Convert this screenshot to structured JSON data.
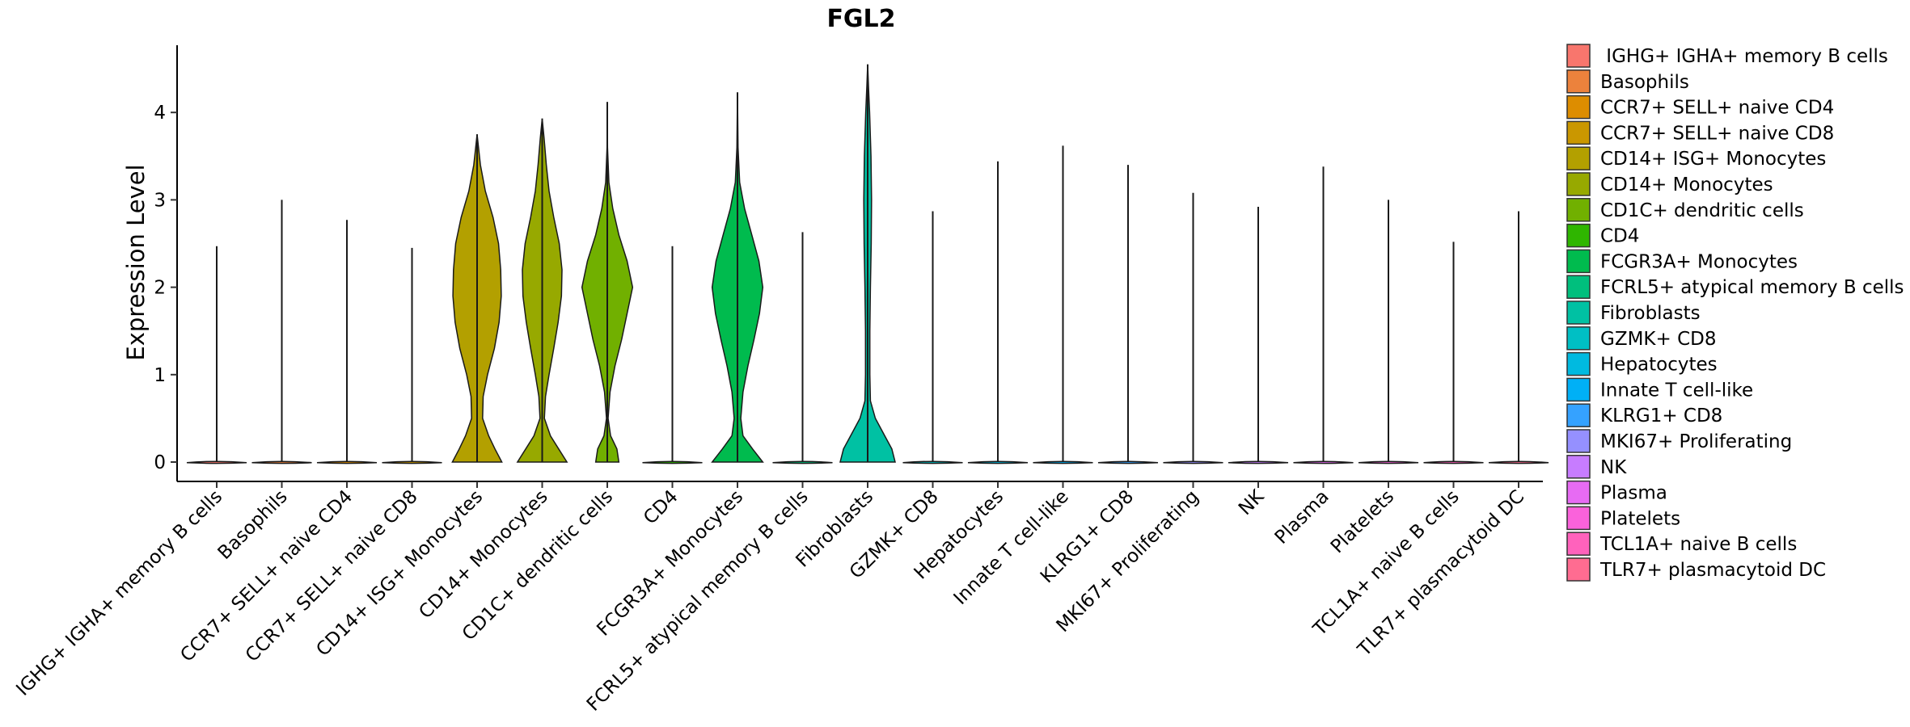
{
  "chart_data": {
    "type": "violin",
    "title": "FGL2",
    "xlabel": "",
    "ylabel": "Expression Level",
    "ylim": [
      -0.22,
      4.8
    ],
    "yticks": [
      0,
      1,
      2,
      3,
      4
    ],
    "legend_position": "right",
    "categories": [
      {
        "name": "IGHG+ IGHA+ memory B cells",
        "legend_label": " IGHG+ IGHA+ memory B cells",
        "color": "#F8766D",
        "max": 2.47,
        "density": []
      },
      {
        "name": "Basophils",
        "legend_label": "Basophils",
        "color": "#EC823C",
        "max": 3.0,
        "density": []
      },
      {
        "name": "CCR7+ SELL+ naive CD4",
        "legend_label": "CCR7+ SELL+ naive CD4",
        "color": "#DD8D00",
        "max": 2.77,
        "density": []
      },
      {
        "name": "CCR7+ SELL+ naive CD8",
        "legend_label": "CCR7+ SELL+ naive CD8",
        "color": "#CA9700",
        "max": 2.45,
        "density": []
      },
      {
        "name": "CD14+ ISG+ Monocytes",
        "legend_label": "CD14+ ISG+ Monocytes",
        "color": "#B3A000",
        "max": 3.75,
        "density": [
          [
            0,
            0.9
          ],
          [
            0.15,
            0.65
          ],
          [
            0.3,
            0.42
          ],
          [
            0.5,
            0.2
          ],
          [
            0.75,
            0.22
          ],
          [
            1.0,
            0.38
          ],
          [
            1.3,
            0.63
          ],
          [
            1.6,
            0.8
          ],
          [
            1.9,
            0.88
          ],
          [
            2.2,
            0.86
          ],
          [
            2.5,
            0.78
          ],
          [
            2.8,
            0.58
          ],
          [
            3.1,
            0.3
          ],
          [
            3.4,
            0.12
          ],
          [
            3.75,
            0.0
          ]
        ]
      },
      {
        "name": "CD14+ Monocytes",
        "legend_label": "CD14+ Monocytes",
        "color": "#97A900",
        "max": 3.93,
        "density": [
          [
            0,
            0.9
          ],
          [
            0.15,
            0.6
          ],
          [
            0.3,
            0.3
          ],
          [
            0.5,
            0.08
          ],
          [
            0.75,
            0.12
          ],
          [
            1.0,
            0.25
          ],
          [
            1.3,
            0.42
          ],
          [
            1.6,
            0.58
          ],
          [
            1.9,
            0.7
          ],
          [
            2.2,
            0.72
          ],
          [
            2.5,
            0.62
          ],
          [
            2.8,
            0.42
          ],
          [
            3.1,
            0.25
          ],
          [
            3.4,
            0.15
          ],
          [
            3.7,
            0.07
          ],
          [
            3.93,
            0.0
          ]
        ]
      },
      {
        "name": "CD1C+ dendritic cells",
        "legend_label": "CD1C+ dendritic cells",
        "color": "#71B000",
        "max": 4.12,
        "density": [
          [
            0,
            0.42
          ],
          [
            0.15,
            0.35
          ],
          [
            0.3,
            0.12
          ],
          [
            0.5,
            0.03
          ],
          [
            0.8,
            0.1
          ],
          [
            1.1,
            0.28
          ],
          [
            1.4,
            0.52
          ],
          [
            1.7,
            0.72
          ],
          [
            2.0,
            0.92
          ],
          [
            2.3,
            0.72
          ],
          [
            2.6,
            0.42
          ],
          [
            2.9,
            0.2
          ],
          [
            3.2,
            0.06
          ],
          [
            3.6,
            0.01
          ],
          [
            4.12,
            0.0
          ]
        ]
      },
      {
        "name": "CD4",
        "legend_label": "CD4",
        "color": "#2FB600",
        "max": 2.47,
        "density": []
      },
      {
        "name": "FCGR3A+ Monocytes",
        "legend_label": "FCGR3A+ Monocytes",
        "color": "#00BB4E",
        "max": 4.23,
        "density": [
          [
            0,
            0.92
          ],
          [
            0.15,
            0.55
          ],
          [
            0.3,
            0.2
          ],
          [
            0.5,
            0.12
          ],
          [
            0.8,
            0.2
          ],
          [
            1.1,
            0.38
          ],
          [
            1.4,
            0.6
          ],
          [
            1.7,
            0.8
          ],
          [
            2.0,
            0.92
          ],
          [
            2.3,
            0.78
          ],
          [
            2.6,
            0.52
          ],
          [
            2.9,
            0.26
          ],
          [
            3.2,
            0.08
          ],
          [
            3.6,
            0.02
          ],
          [
            4.23,
            0.0
          ]
        ]
      },
      {
        "name": "FCRL5+ atypical memory B cells",
        "legend_label": "FCRL5+ atypical memory B cells",
        "color": "#00BF7D",
        "max": 2.63,
        "density": []
      },
      {
        "name": "Fibroblasts",
        "legend_label": "Fibroblasts",
        "color": "#00C1A3",
        "max": 4.55,
        "density": [
          [
            0,
            1.0
          ],
          [
            0.15,
            0.88
          ],
          [
            0.3,
            0.62
          ],
          [
            0.5,
            0.28
          ],
          [
            0.7,
            0.1
          ],
          [
            1.0,
            0.08
          ],
          [
            1.5,
            0.08
          ],
          [
            2.0,
            0.1
          ],
          [
            2.5,
            0.13
          ],
          [
            3.0,
            0.14
          ],
          [
            3.5,
            0.12
          ],
          [
            4.0,
            0.07
          ],
          [
            4.3,
            0.03
          ],
          [
            4.55,
            0.0
          ]
        ]
      },
      {
        "name": "GZMK+ CD8",
        "legend_label": "GZMK+ CD8",
        "color": "#00BFC4",
        "max": 2.87,
        "density": []
      },
      {
        "name": "Hepatocytes",
        "legend_label": "Hepatocytes",
        "color": "#00BAE0",
        "max": 3.44,
        "density": []
      },
      {
        "name": "Innate T cell-like",
        "legend_label": "Innate T cell-like",
        "color": "#00B0F6",
        "max": 3.62,
        "density": []
      },
      {
        "name": "KLRG1+ CD8",
        "legend_label": "KLRG1+ CD8",
        "color": "#35A2FF",
        "max": 3.4,
        "density": []
      },
      {
        "name": "MKI67+ Proliferating",
        "legend_label": "MKI67+ Proliferating",
        "color": "#9590FF",
        "max": 3.08,
        "density": []
      },
      {
        "name": "NK",
        "legend_label": "NK",
        "color": "#C77CFF",
        "max": 2.92,
        "density": []
      },
      {
        "name": "Plasma",
        "legend_label": "Plasma",
        "color": "#E76BF3",
        "max": 3.38,
        "density": []
      },
      {
        "name": "Platelets",
        "legend_label": "Platelets",
        "color": "#FA62DB",
        "max": 3.0,
        "density": []
      },
      {
        "name": "TCL1A+ naive B cells",
        "legend_label": "TCL1A+ naive B cells",
        "color": "#FF62BC",
        "max": 2.52,
        "density": []
      },
      {
        "name": "TLR7+ plasmacytoid DC",
        "legend_label": "TLR7+ plasmacytoid DC",
        "color": "#FF6C91",
        "max": 2.87,
        "density": []
      }
    ]
  }
}
